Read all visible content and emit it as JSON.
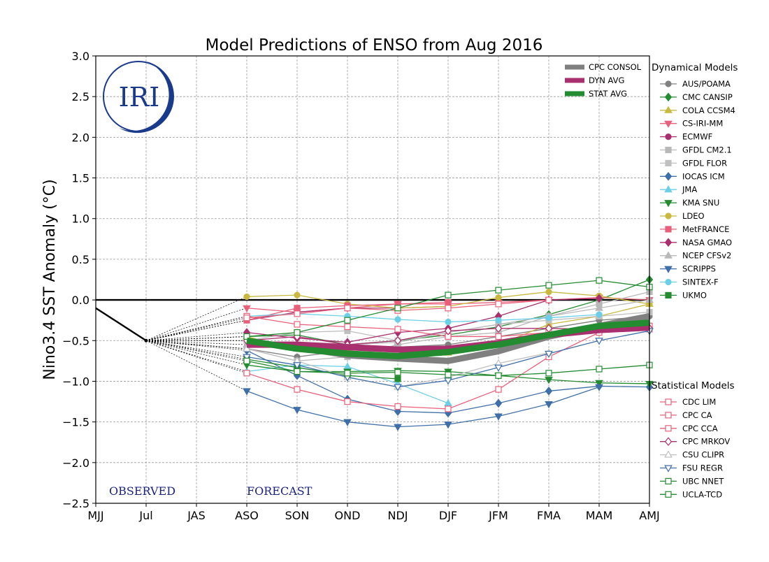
{
  "chart_data": {
    "type": "line",
    "title": "Model Predictions of ENSO from Aug 2016",
    "ylabel": "Nino3.4 SST Anomaly (°C)",
    "xlabel": "",
    "categories": [
      "MJJ",
      "Jul",
      "JAS",
      "ASO",
      "SON",
      "OND",
      "NDJ",
      "DJF",
      "JFM",
      "FMA",
      "MAM",
      "AMJ"
    ],
    "ylim": [
      -2.5,
      3.0
    ],
    "yticks": [
      3.0,
      2.5,
      2.0,
      1.5,
      1.0,
      0.5,
      0.0,
      -0.5,
      -1.0,
      -1.5,
      -2.0,
      -2.5
    ],
    "ytick_labels": [
      "3.0",
      "2.5",
      "2.0",
      "1.5",
      "1.0",
      "0.5",
      "0.0",
      "−0.5",
      "−1.0",
      "−1.5",
      "−2.0",
      "−2.5"
    ],
    "grid": true,
    "annotations": {
      "observed": "OBSERVED",
      "forecast": "FORECAST"
    },
    "logo_text": "IRI",
    "observed": {
      "x": [
        0,
        1
      ],
      "values": [
        -0.1,
        -0.5
      ]
    },
    "forecast_start_x": 3,
    "consensus_legend": [
      {
        "name": "CPC CONSOL",
        "color": "#808080"
      },
      {
        "name": "DYN AVG",
        "color": "#a8306e"
      },
      {
        "name": "STAT AVG",
        "color": "#238b30"
      }
    ],
    "consensus": [
      {
        "name": "CPC CONSOL",
        "color": "#808080",
        "values": [
          -0.52,
          -0.58,
          -0.68,
          -0.72,
          -0.75,
          -0.63,
          -0.45,
          -0.32,
          -0.2
        ]
      },
      {
        "name": "DYN AVG",
        "color": "#a8306e",
        "values": [
          -0.55,
          -0.55,
          -0.58,
          -0.61,
          -0.6,
          -0.53,
          -0.43,
          -0.37,
          -0.34
        ]
      },
      {
        "name": "STAT AVG",
        "color": "#238b30",
        "values": [
          -0.5,
          -0.6,
          -0.66,
          -0.69,
          -0.64,
          -0.55,
          -0.43,
          -0.32,
          -0.28
        ]
      }
    ],
    "dynamical_heading": "Dynamical Models",
    "statistical_heading": "Statistical Models",
    "dynamical_models": [
      {
        "name": "AUS/POAMA",
        "color": "#808080",
        "marker": "circle",
        "filled": true,
        "values": [
          -0.6,
          -0.7,
          -0.62,
          -0.58,
          -0.55,
          -0.45,
          -0.35,
          -0.25,
          -0.2
        ]
      },
      {
        "name": "CMC CANSIP",
        "color": "#238b30",
        "marker": "diamond",
        "filled": true,
        "values": [
          -0.45,
          -0.43,
          -0.55,
          -0.5,
          -0.43,
          -0.33,
          -0.18,
          0.0,
          0.25
        ]
      },
      {
        "name": "COLA CCSM4",
        "color": "#c8b840",
        "marker": "triangle-up",
        "filled": true,
        "values": [
          -0.45,
          -0.6,
          -0.62,
          -0.6,
          -0.65,
          -0.55,
          -0.3,
          -0.2,
          -0.05
        ]
      },
      {
        "name": "CS-IRI-MM",
        "color": "#e8607a",
        "marker": "triangle-down",
        "filled": true,
        "values": [
          -0.1,
          -0.15,
          -0.1,
          -0.05,
          -0.05,
          -0.03,
          0.0,
          0.03,
          0.0
        ]
      },
      {
        "name": "ECMWF",
        "color": "#a8306e",
        "marker": "circle",
        "filled": true,
        "values": [
          -0.25,
          -0.15,
          -0.1,
          -0.1,
          -0.08,
          null,
          null,
          null,
          null
        ]
      },
      {
        "name": "GFDL CM2.1",
        "color": "#b8b8b8",
        "marker": "square",
        "filled": true,
        "values": [
          -0.6,
          -0.75,
          -0.7,
          -0.55,
          -0.45,
          -0.4,
          -0.2,
          -0.05,
          0.1
        ]
      },
      {
        "name": "GFDL FLOR",
        "color": "#c0c0c0",
        "marker": "square",
        "filled": true,
        "values": [
          -0.5,
          -0.4,
          -0.38,
          -0.5,
          -0.4,
          -0.3,
          -0.25,
          -0.2,
          -0.15
        ]
      },
      {
        "name": "IOCAS ICM",
        "color": "#3f6fa8",
        "marker": "diamond",
        "filled": true,
        "values": [
          -0.62,
          -0.93,
          -1.22,
          -1.37,
          -1.39,
          -1.27,
          -1.12,
          -1.06,
          -1.07
        ]
      },
      {
        "name": "JMA",
        "color": "#6ccfe8",
        "marker": "triangle-up",
        "filled": true,
        "values": [
          -0.88,
          -0.8,
          -0.82,
          -1.03,
          -1.27,
          null,
          null,
          null,
          null
        ]
      },
      {
        "name": "KMA SNU",
        "color": "#238b30",
        "marker": "triangle-down",
        "filled": true,
        "values": [
          -0.8,
          -0.88,
          -0.88,
          -0.87,
          -0.88,
          -0.93,
          -0.98,
          -1.02,
          -1.03
        ]
      },
      {
        "name": "LDEO",
        "color": "#c8b840",
        "marker": "circle",
        "filled": true,
        "values": [
          0.04,
          0.06,
          -0.05,
          -0.1,
          -0.08,
          0.03,
          0.1,
          0.05,
          -0.05
        ]
      },
      {
        "name": "MetFRANCE",
        "color": "#e8607a",
        "marker": "square",
        "filled": true,
        "values": [
          -0.25,
          -0.1,
          -0.07,
          -0.05,
          -0.03,
          null,
          null,
          null,
          null
        ]
      },
      {
        "name": "NASA GMAO",
        "color": "#a8306e",
        "marker": "diamond",
        "filled": true,
        "values": [
          -0.4,
          -0.47,
          -0.52,
          -0.4,
          -0.35,
          -0.2,
          0.0,
          0.02,
          null
        ]
      },
      {
        "name": "NCEP CFSv2",
        "color": "#b8b8b8",
        "marker": "triangle-up",
        "filled": true,
        "values": [
          -0.55,
          -0.6,
          -0.55,
          -0.52,
          -0.4,
          -0.3,
          -0.2,
          -0.1,
          0.0
        ]
      },
      {
        "name": "SCRIPPS",
        "color": "#3f6fa8",
        "marker": "triangle-down",
        "filled": true,
        "values": [
          -1.12,
          -1.35,
          -1.5,
          -1.56,
          -1.53,
          -1.43,
          -1.28,
          -1.07,
          null
        ]
      },
      {
        "name": "SINTEX-F",
        "color": "#6ccfe8",
        "marker": "circle",
        "filled": true,
        "values": [
          -0.2,
          -0.17,
          -0.2,
          -0.24,
          -0.27,
          -0.25,
          -0.22,
          -0.18,
          null
        ]
      },
      {
        "name": "UKMO",
        "color": "#238b30",
        "marker": "square",
        "filled": true,
        "values": [
          -0.73,
          -0.83,
          -0.93,
          -0.97,
          null,
          null,
          null,
          null,
          null
        ]
      }
    ],
    "statistical_models": [
      {
        "name": "CDC LIM",
        "color": "#e8607a",
        "marker": "square",
        "filled": false,
        "values": [
          -0.9,
          -1.1,
          -1.25,
          -1.31,
          -1.34,
          -1.1,
          -0.7,
          -0.4,
          -0.36
        ]
      },
      {
        "name": "CPC CA",
        "color": "#e8607a",
        "marker": "square",
        "filled": false,
        "values": [
          -0.2,
          -0.3,
          -0.33,
          -0.36,
          -0.45,
          -0.45,
          -0.4,
          -0.35,
          -0.32
        ]
      },
      {
        "name": "CPC CCA",
        "color": "#e8607a",
        "marker": "square",
        "filled": false,
        "values": [
          -0.22,
          -0.17,
          -0.1,
          -0.13,
          -0.1,
          -0.05,
          0.0,
          null,
          null
        ]
      },
      {
        "name": "CPC MRKOV",
        "color": "#a8306e",
        "marker": "diamond",
        "filled": false,
        "values": [
          -0.5,
          -0.45,
          -0.55,
          -0.5,
          -0.38,
          -0.35,
          -0.35,
          -0.36,
          -0.35
        ]
      },
      {
        "name": "CSU CLIPR",
        "color": "#c0c0c0",
        "marker": "triangle-up",
        "filled": false,
        "values": [
          -0.6,
          -0.75,
          -0.95,
          -1.07,
          -0.95,
          -0.78,
          -0.65,
          null,
          null
        ]
      },
      {
        "name": "FSU REGR",
        "color": "#3f6fa8",
        "marker": "triangle-down",
        "filled": false,
        "values": [
          -0.7,
          -0.8,
          -0.95,
          -1.07,
          -0.99,
          -0.83,
          -0.66,
          -0.5,
          -0.38
        ]
      },
      {
        "name": "UBC NNET",
        "color": "#238b30",
        "marker": "square",
        "filled": false,
        "values": [
          -0.75,
          -0.88,
          -0.9,
          -0.89,
          -0.92,
          -0.93,
          -0.9,
          -0.85,
          -0.8
        ]
      },
      {
        "name": "UCLA-TCD",
        "color": "#238b30",
        "marker": "square",
        "filled": false,
        "values": [
          -0.45,
          -0.4,
          -0.25,
          -0.1,
          0.06,
          0.12,
          0.18,
          0.24,
          0.16
        ]
      }
    ]
  }
}
